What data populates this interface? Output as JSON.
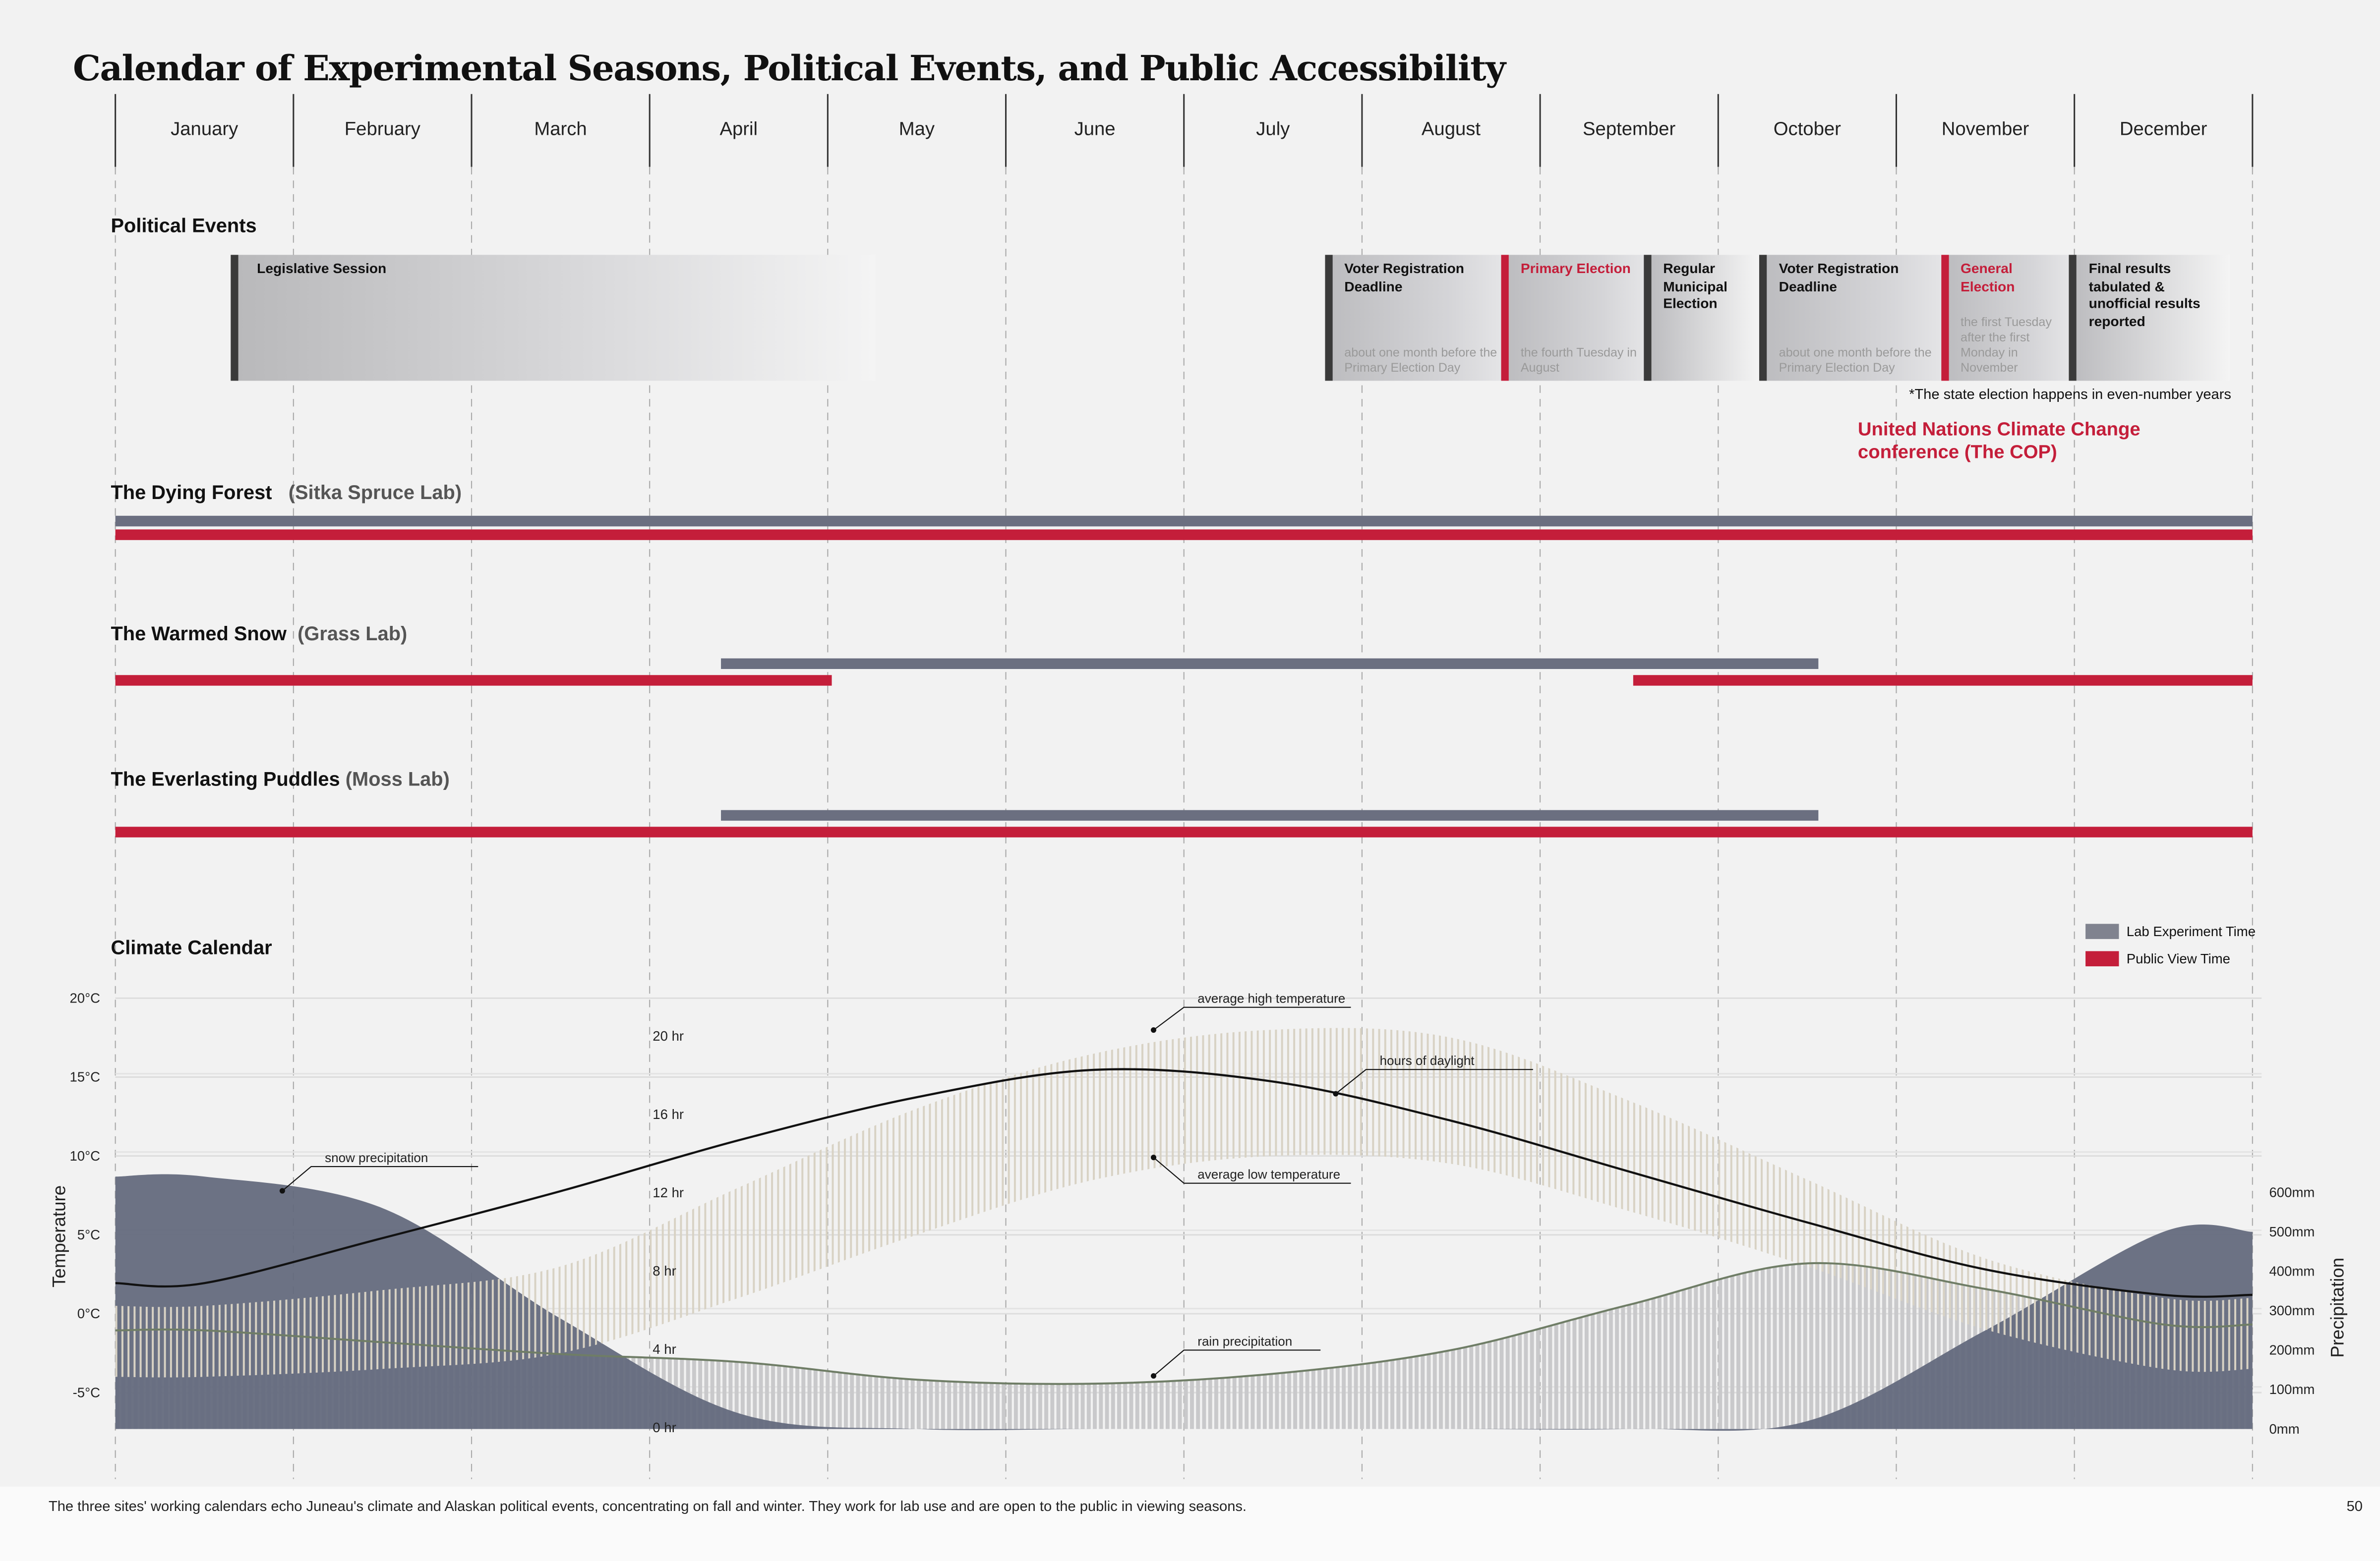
{
  "title": "Calendar of Experimental Seasons, Political Events, and Public Accessibility",
  "months": [
    "January",
    "February",
    "March",
    "April",
    "May",
    "June",
    "July",
    "August",
    "September",
    "October",
    "November",
    "December"
  ],
  "colors": {
    "lab": "#6b6f80",
    "public": "#c41e3a",
    "dark": "#3a3a3a"
  },
  "political": {
    "heading": "Political Events",
    "legislative": {
      "label": "Legislative Session",
      "start": 0.65,
      "end": 4.27
    },
    "events": [
      {
        "title": "Voter Registration Deadline",
        "desc": "about one month before the Primary Election Day",
        "start": 6.79,
        "end": 7.78,
        "red": false
      },
      {
        "title": "Primary Election",
        "desc": "the fourth Tuesday in August",
        "start": 7.78,
        "end": 8.58,
        "red": true
      },
      {
        "title": "Regular Municipal Election",
        "desc": "",
        "start": 8.58,
        "end": 9.23,
        "red": false
      },
      {
        "title": "Voter Registration Deadline",
        "desc": "about one month before the Primary Election Day",
        "start": 9.23,
        "end": 10.25,
        "red": false
      },
      {
        "title": "General Election",
        "desc": "the first Tuesday after the first Monday in November",
        "start": 10.25,
        "end": 10.97,
        "red": true
      },
      {
        "title": "Final results tabulated & unofficial results reported",
        "desc": "",
        "start": 10.97,
        "end": 11.87,
        "red": false
      }
    ],
    "note": "*The state election happens in even-number years",
    "cop": "United Nations Climate Change conference (The COP)"
  },
  "labs": [
    {
      "name": "The Dying Forest",
      "sub": "(Sitka Spruce Lab)",
      "lab": [
        [
          0,
          12
        ]
      ],
      "public": [
        [
          0,
          12
        ]
      ]
    },
    {
      "name": "The Warmed Snow",
      "sub": "(Grass Lab)",
      "lab": [
        [
          3.4,
          9.56
        ]
      ],
      "public": [
        [
          0,
          4.02
        ],
        [
          8.52,
          12
        ]
      ]
    },
    {
      "name": "The Everlasting Puddles",
      "sub": "(Moss Lab)",
      "lab": [
        [
          3.4,
          9.56
        ]
      ],
      "public": [
        [
          0,
          12
        ]
      ]
    }
  ],
  "legend": {
    "lab": "Lab Experiment Time",
    "public": "Public View Time"
  },
  "chart_data": {
    "type": "area",
    "title": "Climate Calendar",
    "categories": [
      "Jan",
      "Feb",
      "Mar",
      "Apr",
      "May",
      "Jun",
      "Jul",
      "Aug",
      "Sep",
      "Oct",
      "Nov",
      "Dec"
    ],
    "ylabel": "Temperature",
    "y2label": "Precipitation",
    "temp_ticks": [
      "20°C",
      "15°C",
      "10°C",
      "5°C",
      "0°C",
      "-5°C"
    ],
    "temp_values": [
      20,
      15,
      10,
      5,
      0,
      -5
    ],
    "hour_ticks": [
      "20 hr",
      "16 hr",
      "12 hr",
      "8 hr",
      "4 hr",
      "0 hr"
    ],
    "hour_values": [
      20,
      16,
      12,
      8,
      4,
      0
    ],
    "precip_ticks": [
      "600mm",
      "500mm",
      "400mm",
      "300mm",
      "200mm",
      "100mm",
      "0mm"
    ],
    "precip_values": [
      600,
      500,
      400,
      300,
      200,
      100,
      0
    ],
    "ylim_temp": [
      -7.5,
      20
    ],
    "series": [
      {
        "name": "average high temperature",
        "unit": "°C",
        "values": [
          0.5,
          1.5,
          3,
          8,
          13,
          16.5,
          18,
          17.5,
          13.5,
          8.5,
          3.5,
          1
        ]
      },
      {
        "name": "average low temperature",
        "unit": "°C",
        "values": [
          -4,
          -3.5,
          -2.5,
          1,
          5,
          8.5,
          10,
          9.5,
          6.5,
          3,
          -1,
          -3.5
        ]
      },
      {
        "name": "hours of daylight",
        "unit": "hr",
        "values": [
          7.3,
          9.6,
          12,
          14.6,
          16.8,
          18.2,
          17.6,
          15.6,
          13,
          10.4,
          8,
          6.7
        ]
      },
      {
        "name": "snow precipitation",
        "unit": "mm",
        "values": [
          640,
          560,
          280,
          40,
          0,
          0,
          0,
          0,
          0,
          20,
          250,
          500
        ]
      },
      {
        "name": "rain precipitation",
        "unit": "mm",
        "values": [
          250,
          220,
          190,
          170,
          125,
          115,
          140,
          200,
          315,
          420,
          355,
          265
        ]
      }
    ],
    "annotations": [
      "average high temperature",
      "hours of daylight",
      "snow precipitation",
      "average low temperature",
      "rain precipitation"
    ]
  },
  "footer": {
    "caption": "The three sites' working calendars echo Juneau's climate and Alaskan political events, concentrating on fall and winter. They work for lab use and are open to the public in viewing seasons.",
    "page": "50"
  }
}
